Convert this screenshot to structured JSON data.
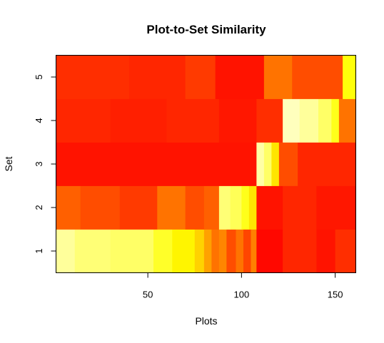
{
  "chart_data": {
    "type": "heatmap",
    "title": "Plot-to-Set Similarity",
    "xlabel": "Plots",
    "ylabel": "Set",
    "x_ticks": [
      50,
      100,
      150
    ],
    "y_ticks": [
      1,
      2,
      3,
      4,
      5
    ],
    "x_range": [
      1,
      161
    ],
    "y_range": [
      1,
      5
    ],
    "colormap": "heat",
    "color_stops": [
      "#ff0000",
      "#ff4000",
      "#ff8000",
      "#ffbf00",
      "#ffff00",
      "#ffff80",
      "#ffffe0"
    ],
    "legend": "none",
    "rows": [
      {
        "set": 1,
        "bands": [
          {
            "from": 1,
            "to": 11,
            "value": 0.88
          },
          {
            "from": 11,
            "to": 30,
            "value": 0.82
          },
          {
            "from": 30,
            "to": 53,
            "value": 0.8
          },
          {
            "from": 53,
            "to": 63,
            "value": 0.72
          },
          {
            "from": 63,
            "to": 75,
            "value": 0.64
          },
          {
            "from": 75,
            "to": 80,
            "value": 0.55
          },
          {
            "from": 80,
            "to": 84,
            "value": 0.42
          },
          {
            "from": 84,
            "to": 88,
            "value": 0.3
          },
          {
            "from": 88,
            "to": 92,
            "value": 0.35
          },
          {
            "from": 92,
            "to": 97,
            "value": 0.2
          },
          {
            "from": 97,
            "to": 101,
            "value": 0.3
          },
          {
            "from": 101,
            "to": 105,
            "value": 0.18
          },
          {
            "from": 105,
            "to": 108,
            "value": 0.33
          },
          {
            "from": 108,
            "to": 122,
            "value": 0.02
          },
          {
            "from": 122,
            "to": 140,
            "value": 0.1
          },
          {
            "from": 140,
            "to": 150,
            "value": 0.05
          },
          {
            "from": 150,
            "to": 161,
            "value": 0.12
          }
        ]
      },
      {
        "set": 2,
        "bands": [
          {
            "from": 1,
            "to": 14,
            "value": 0.25
          },
          {
            "from": 14,
            "to": 35,
            "value": 0.2
          },
          {
            "from": 35,
            "to": 55,
            "value": 0.15
          },
          {
            "from": 55,
            "to": 70,
            "value": 0.3
          },
          {
            "from": 70,
            "to": 80,
            "value": 0.2
          },
          {
            "from": 80,
            "to": 88,
            "value": 0.25
          },
          {
            "from": 88,
            "to": 94,
            "value": 0.82
          },
          {
            "from": 94,
            "to": 100,
            "value": 0.78
          },
          {
            "from": 100,
            "to": 104,
            "value": 0.7
          },
          {
            "from": 104,
            "to": 108,
            "value": 0.6
          },
          {
            "from": 108,
            "to": 122,
            "value": 0.05
          },
          {
            "from": 122,
            "to": 140,
            "value": 0.1
          },
          {
            "from": 140,
            "to": 161,
            "value": 0.06
          }
        ]
      },
      {
        "set": 3,
        "bands": [
          {
            "from": 1,
            "to": 108,
            "value": 0.05
          },
          {
            "from": 108,
            "to": 112,
            "value": 0.9
          },
          {
            "from": 112,
            "to": 116,
            "value": 0.8
          },
          {
            "from": 116,
            "to": 120,
            "value": 0.6
          },
          {
            "from": 120,
            "to": 130,
            "value": 0.2
          },
          {
            "from": 130,
            "to": 161,
            "value": 0.1
          }
        ]
      },
      {
        "set": 4,
        "bands": [
          {
            "from": 1,
            "to": 30,
            "value": 0.1
          },
          {
            "from": 30,
            "to": 60,
            "value": 0.08
          },
          {
            "from": 60,
            "to": 88,
            "value": 0.1
          },
          {
            "from": 88,
            "to": 108,
            "value": 0.06
          },
          {
            "from": 108,
            "to": 122,
            "value": 0.12
          },
          {
            "from": 122,
            "to": 131,
            "value": 0.94
          },
          {
            "from": 131,
            "to": 141,
            "value": 0.88
          },
          {
            "from": 141,
            "to": 148,
            "value": 0.8
          },
          {
            "from": 148,
            "to": 152,
            "value": 0.7
          },
          {
            "from": 152,
            "to": 161,
            "value": 0.3
          }
        ]
      },
      {
        "set": 5,
        "bands": [
          {
            "from": 1,
            "to": 40,
            "value": 0.12
          },
          {
            "from": 40,
            "to": 70,
            "value": 0.1
          },
          {
            "from": 70,
            "to": 86,
            "value": 0.15
          },
          {
            "from": 86,
            "to": 112,
            "value": 0.05
          },
          {
            "from": 112,
            "to": 127,
            "value": 0.3
          },
          {
            "from": 127,
            "to": 154,
            "value": 0.2
          },
          {
            "from": 154,
            "to": 161,
            "value": 0.68
          }
        ]
      }
    ]
  }
}
